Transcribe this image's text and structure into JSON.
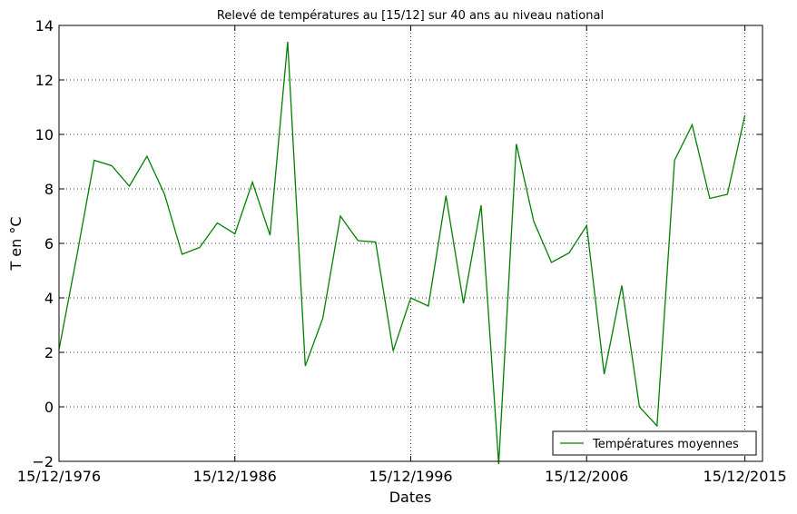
{
  "chart_data": {
    "type": "line",
    "title": "Relevé de températures au [15/12] sur 40 ans au niveau national",
    "xlabel": "Dates",
    "ylabel": "T en °C",
    "x_tick_labels": [
      "15/12/1976",
      "15/12/1986",
      "15/12/1996",
      "15/12/2006",
      "15/12/2015"
    ],
    "x_tick_years": [
      1976,
      1986,
      1996,
      2006,
      2015
    ],
    "xlim": [
      1976,
      2016
    ],
    "ylim": [
      -2,
      14
    ],
    "y_ticks": [
      -2,
      0,
      2,
      4,
      6,
      8,
      10,
      12,
      14
    ],
    "grid": true,
    "legend_position": "lower-right",
    "series": [
      {
        "name": "Températures moyennes",
        "color": "#008000",
        "x": [
          1976,
          1977,
          1978,
          1979,
          1980,
          1981,
          1982,
          1983,
          1984,
          1985,
          1986,
          1987,
          1988,
          1989,
          1990,
          1991,
          1992,
          1993,
          1994,
          1995,
          1996,
          1997,
          1998,
          1999,
          2000,
          2001,
          2002,
          2003,
          2004,
          2005,
          2006,
          2007,
          2008,
          2009,
          2010,
          2011,
          2012,
          2013,
          2014,
          2015
        ],
        "values": [
          2.1,
          5.5,
          9.05,
          8.85,
          8.1,
          9.2,
          7.8,
          5.6,
          5.85,
          6.75,
          6.35,
          8.25,
          6.3,
          13.4,
          1.5,
          3.25,
          7.0,
          6.1,
          6.05,
          2.05,
          4.0,
          3.7,
          7.75,
          3.8,
          7.4,
          -2.1,
          9.65,
          6.8,
          5.3,
          5.65,
          6.65,
          1.2,
          4.45,
          0.0,
          -0.7,
          9.05,
          10.35,
          7.65,
          7.8,
          10.7
        ]
      }
    ]
  }
}
